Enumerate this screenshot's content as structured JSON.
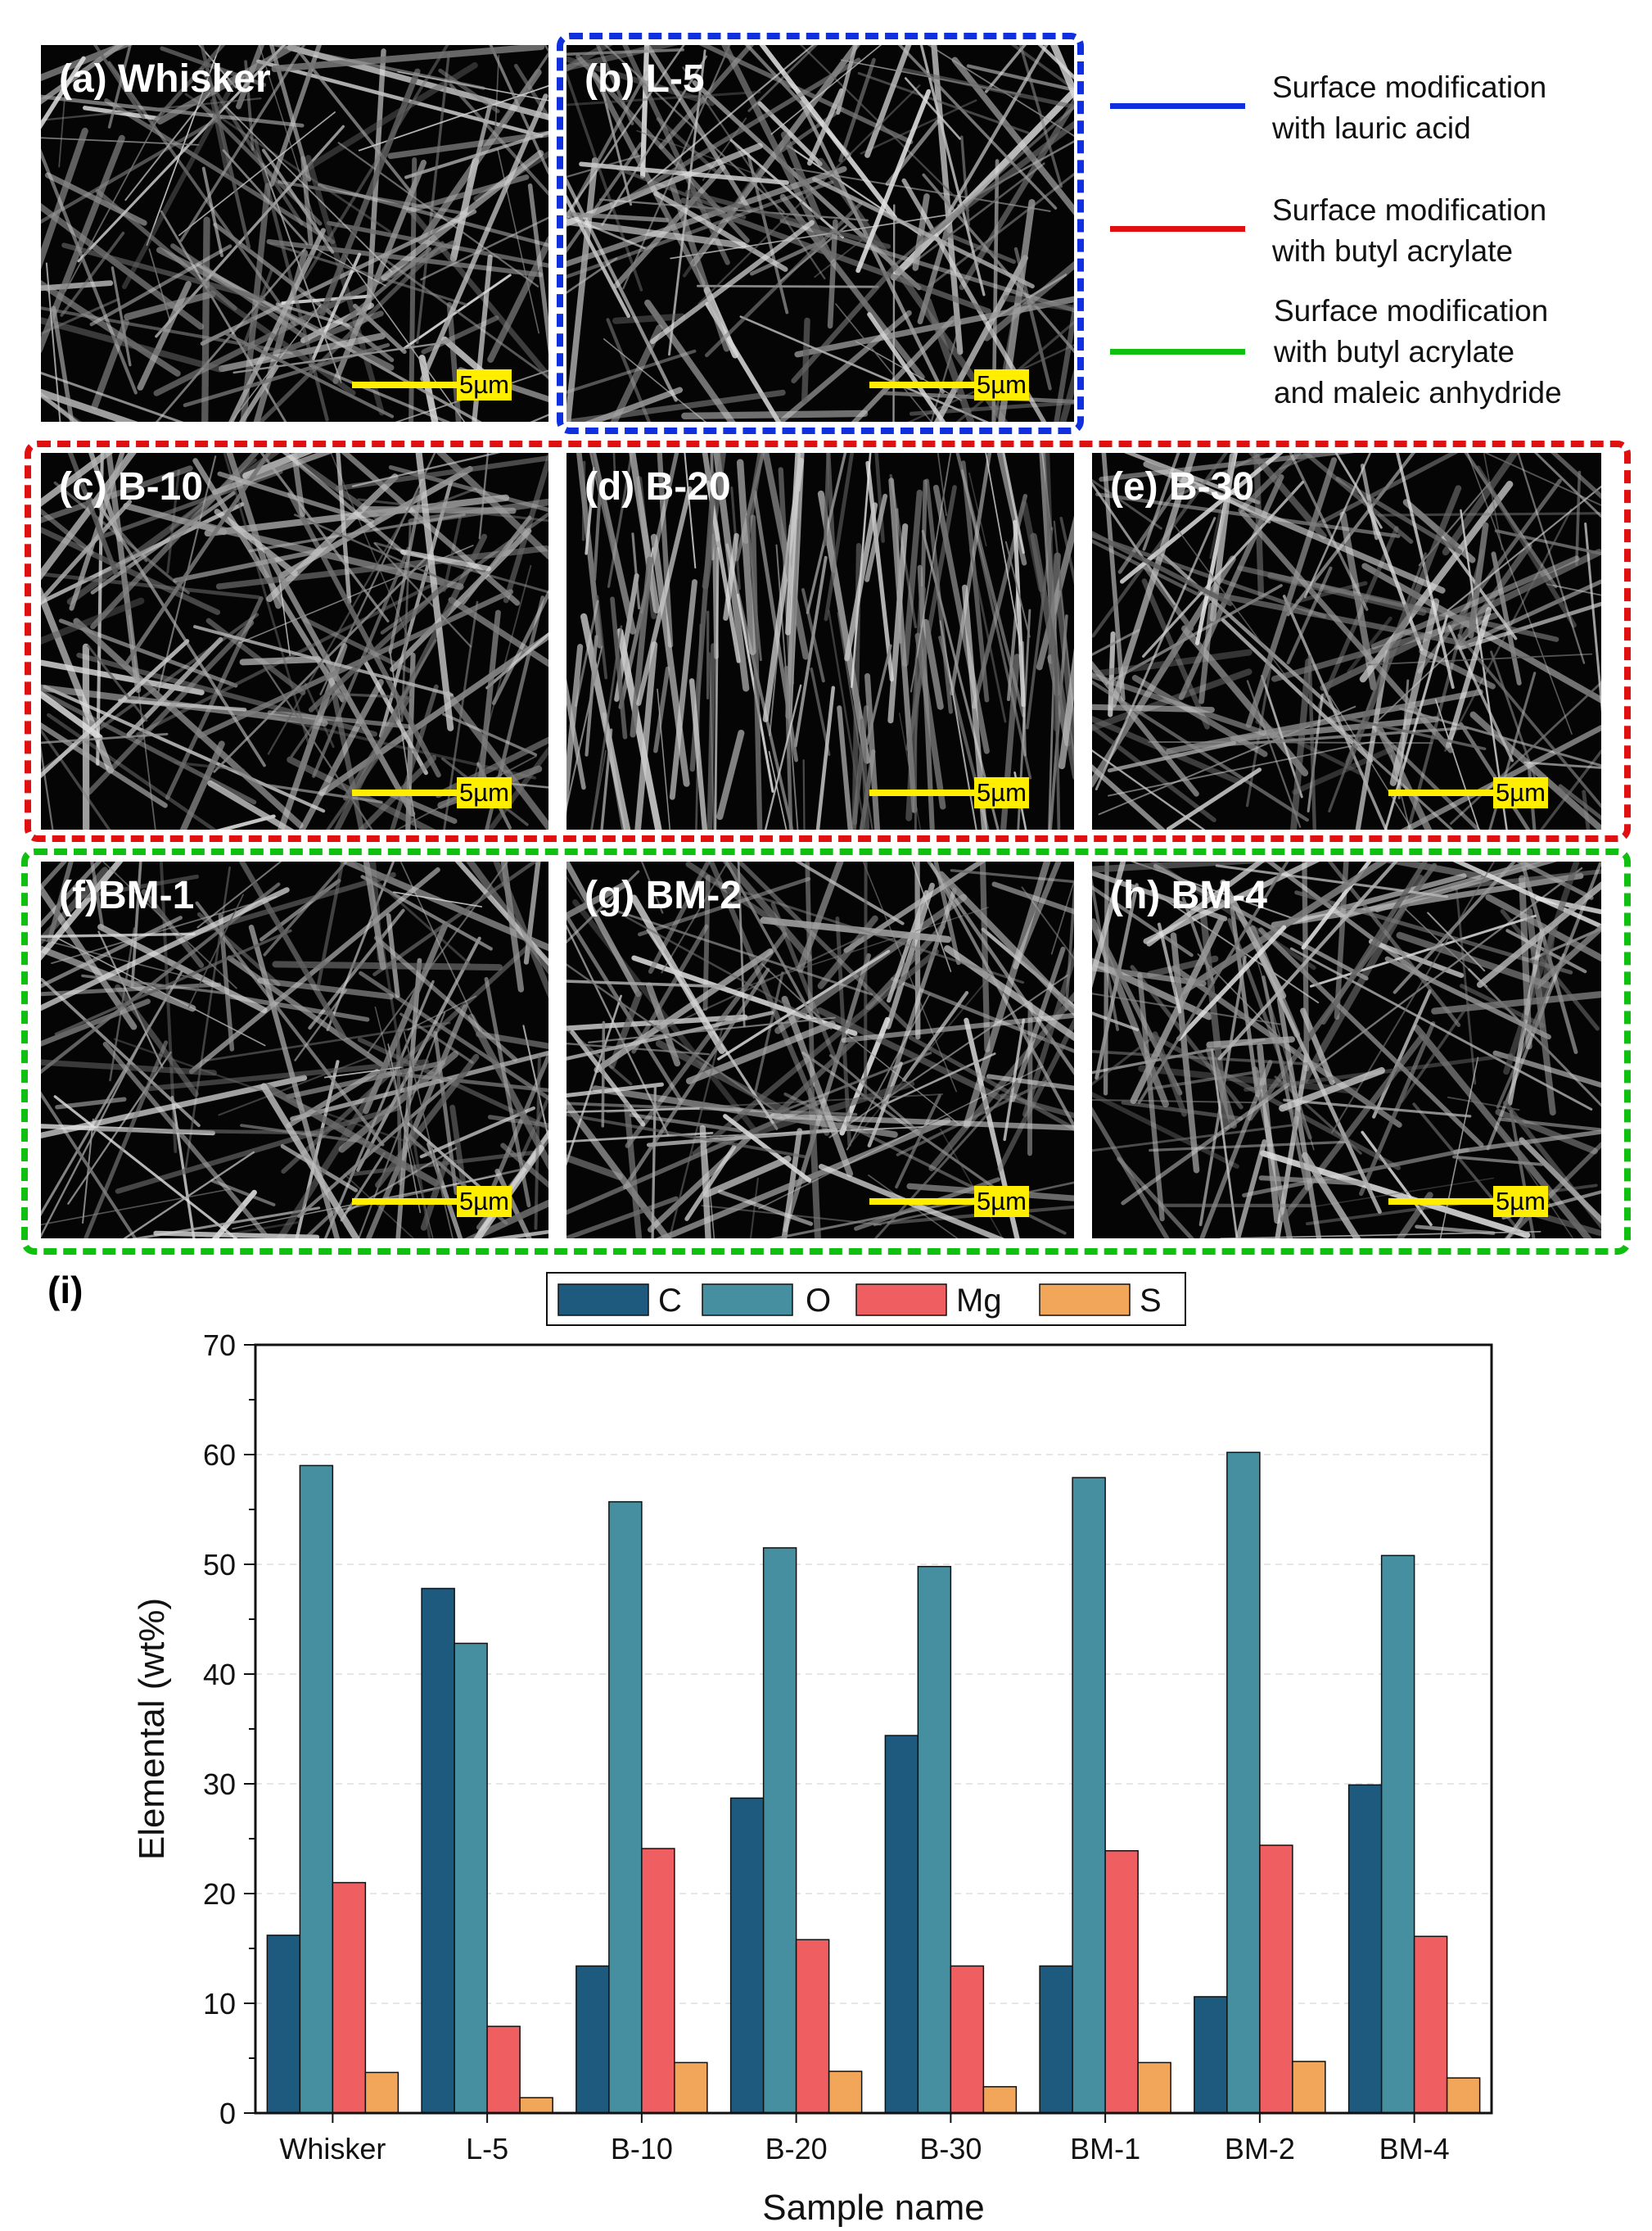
{
  "panels": [
    {
      "id": "a",
      "label": "(a) Whisker",
      "scale": "5µm"
    },
    {
      "id": "b",
      "label": "(b) L-5",
      "scale": "5µm"
    },
    {
      "id": "c",
      "label": "(c) B-10",
      "scale": "5µm"
    },
    {
      "id": "d",
      "label": "(d) B-20",
      "scale": "5µm"
    },
    {
      "id": "e",
      "label": "(e) B-30",
      "scale": "5µm"
    },
    {
      "id": "f",
      "label": "(f)BM-1",
      "scale": "5µm"
    },
    {
      "id": "g",
      "label": "(g) BM-2",
      "scale": "5µm"
    },
    {
      "id": "h",
      "label": "(h) BM-4",
      "scale": "5µm"
    }
  ],
  "legend_top": [
    {
      "color": "#1030e0",
      "lines": [
        "Surface modification",
        "with lauric acid"
      ]
    },
    {
      "color": "#e01010",
      "lines": [
        "Surface modification",
        "with butyl acrylate"
      ]
    },
    {
      "color": "#10c010",
      "lines": [
        "Surface modification",
        "with butyl acrylate",
        "and maleic anhydride"
      ]
    }
  ],
  "chart_label": "(i)",
  "colors": {
    "C": "#1d5a7d",
    "O": "#468fa0",
    "Mg": "#ef5f62",
    "S": "#f1a65a",
    "blue": "#1030e0",
    "red": "#e01010",
    "green": "#10c010"
  },
  "chart_data": {
    "type": "bar",
    "categories": [
      "Whisker",
      "L-5",
      "B-10",
      "B-20",
      "B-30",
      "BM-1",
      "BM-2",
      "BM-4"
    ],
    "series": [
      {
        "name": "C",
        "values": [
          16.2,
          47.8,
          13.4,
          28.7,
          34.4,
          13.4,
          10.6,
          29.9
        ]
      },
      {
        "name": "O",
        "values": [
          59.0,
          42.8,
          55.7,
          51.5,
          49.8,
          57.9,
          60.2,
          50.8
        ]
      },
      {
        "name": "Mg",
        "values": [
          21.0,
          7.9,
          24.1,
          15.8,
          13.4,
          23.9,
          24.4,
          16.1
        ]
      },
      {
        "name": "S",
        "values": [
          3.7,
          1.4,
          4.6,
          3.8,
          2.4,
          4.6,
          4.7,
          3.2
        ]
      }
    ],
    "xlabel": "Sample name",
    "ylabel": "Elemental (wt%)",
    "ylim": [
      0,
      70
    ],
    "yticks": [
      0,
      10,
      20,
      30,
      40,
      50,
      60,
      70
    ],
    "grid": true,
    "legend": "top"
  }
}
